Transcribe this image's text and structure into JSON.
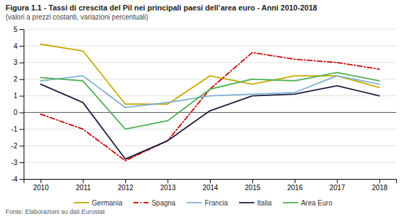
{
  "chart_data": {
    "type": "line",
    "title": "Figura 1.1 - Tassi di crescita del Pil nei principali paesi dell’area euro - Anni 2010-2018",
    "subtitle": "(valori a prezzi costanti, variazioni percentuali)",
    "annotations": [
      "Fonte: Elaborazioni su dati Eurostat"
    ],
    "x": [
      2010,
      2011,
      2012,
      2013,
      2014,
      2015,
      2016,
      2017,
      2018
    ],
    "series": [
      {
        "name": "Germania",
        "color": "#c8a800",
        "line_style": "solid",
        "values": [
          4.1,
          3.7,
          0.5,
          0.5,
          2.2,
          1.7,
          2.2,
          2.2,
          1.5
        ]
      },
      {
        "name": "Spagna",
        "color": "#cc0000",
        "line_style": "dashdot",
        "values": [
          -0.1,
          -1.0,
          -2.9,
          -1.7,
          1.4,
          3.6,
          3.2,
          3.0,
          2.6
        ]
      },
      {
        "name": "Francia",
        "color": "#7bafd4",
        "line_style": "solid",
        "values": [
          1.9,
          2.2,
          0.3,
          0.6,
          1.0,
          1.1,
          1.2,
          2.2,
          1.7
        ]
      },
      {
        "name": "Italia",
        "color": "#1a1a3e",
        "line_style": "solid",
        "values": [
          1.7,
          0.6,
          -2.8,
          -1.7,
          0.1,
          1.0,
          1.1,
          1.6,
          1.0
        ]
      },
      {
        "name": "Area Euro",
        "color": "#4caf50",
        "line_style": "solid",
        "values": [
          2.1,
          1.9,
          -1.0,
          -0.5,
          1.4,
          2.0,
          1.9,
          2.4,
          1.9
        ]
      }
    ],
    "xlim": [
      2009.6,
      2018.4
    ],
    "xticks": [
      2010,
      2011,
      2012,
      2013,
      2014,
      2015,
      2016,
      2017,
      2018
    ],
    "ylim": [
      -4,
      5
    ],
    "yticks": [
      -4,
      -3,
      -2,
      -1,
      0,
      1,
      2,
      3,
      4,
      5
    ],
    "grid": true,
    "legend": "bottom"
  }
}
